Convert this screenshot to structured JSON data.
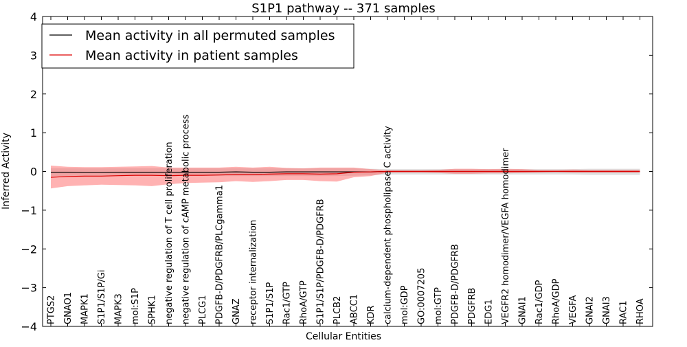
{
  "chart_data": {
    "type": "line",
    "title": "S1P1 pathway -- 371 samples",
    "xlabel": "Cellular Entities",
    "ylabel": "Inferred Activity",
    "ylim": [
      -4,
      4
    ],
    "yticks": [
      -4,
      -3,
      -2,
      -1,
      0,
      1,
      2,
      3,
      4
    ],
    "ytick_labels": [
      "−4",
      "−3",
      "−2",
      "−1",
      "0",
      "1",
      "2",
      "3",
      "4"
    ],
    "legend_position": "top-left",
    "categories": [
      "PTGS2",
      "GNAO1",
      "MAPK1",
      "S1P1/S1P/Gi",
      "MAPK3",
      "mol:S1P",
      "SPHK1",
      "negative regulation of T cell proliferation",
      "negative regulation of cAMP metabolic process",
      "PLCG1",
      "PDGFB-D/PDGFRB/PLCgamma1",
      "GNAZ",
      "receptor internalization",
      "S1P1/S1P",
      "Rac1/GTP",
      "RhoA/GTP",
      "S1P1/S1P/PDGFB-D/PDGFRB",
      "PLCB2",
      "ABCC1",
      "KDR",
      "calcium-dependent phospholipase C activity",
      "mol:GDP",
      "GO:0007205",
      "mol:GTP",
      "PDGFB-D/PDGFRB",
      "PDGFRB",
      "EDG1",
      "VEGFR2 homodimer/VEGFA homodimer",
      "GNAI1",
      "Rac1/GDP",
      "RhoA/GDP",
      "VEGFA",
      "GNAI2",
      "GNAI3",
      "RAC1",
      "RHOA"
    ],
    "series": [
      {
        "name": "Mean activity in all permuted samples",
        "color": "#000000",
        "band_color": "#bbbbbb",
        "values": [
          -0.02,
          -0.02,
          -0.03,
          -0.03,
          -0.02,
          -0.02,
          -0.02,
          -0.02,
          -0.02,
          -0.02,
          -0.02,
          -0.01,
          -0.02,
          -0.02,
          -0.01,
          -0.01,
          -0.01,
          -0.01,
          -0.01,
          -0.01,
          0.0,
          0.0,
          0.0,
          0.0,
          0.0,
          0.0,
          0.0,
          0.0,
          0.0,
          0.0,
          0.0,
          0.0,
          0.0,
          0.0,
          0.0,
          0.0
        ],
        "lower": [
          -0.12,
          -0.12,
          -0.12,
          -0.12,
          -0.12,
          -0.12,
          -0.12,
          -0.12,
          -0.12,
          -0.12,
          -0.12,
          -0.12,
          -0.12,
          -0.12,
          -0.12,
          -0.12,
          -0.12,
          -0.12,
          -0.11,
          -0.1,
          -0.08,
          -0.08,
          -0.08,
          -0.08,
          -0.08,
          -0.08,
          -0.08,
          -0.08,
          -0.08,
          -0.08,
          -0.08,
          -0.08,
          -0.09,
          -0.09,
          -0.09,
          -0.09
        ],
        "upper": [
          0.08,
          0.08,
          0.08,
          0.08,
          0.08,
          0.08,
          0.08,
          0.08,
          0.08,
          0.08,
          0.08,
          0.08,
          0.08,
          0.08,
          0.08,
          0.08,
          0.08,
          0.08,
          0.08,
          0.07,
          0.06,
          0.06,
          0.06,
          0.06,
          0.06,
          0.06,
          0.06,
          0.06,
          0.06,
          0.06,
          0.06,
          0.06,
          0.07,
          0.07,
          0.07,
          0.07
        ]
      },
      {
        "name": "Mean activity in patient samples",
        "color": "#dd0000",
        "band_color": "#ff6666",
        "values": [
          -0.15,
          -0.13,
          -0.12,
          -0.12,
          -0.11,
          -0.1,
          -0.1,
          -0.11,
          -0.1,
          -0.1,
          -0.09,
          -0.08,
          -0.08,
          -0.07,
          -0.06,
          -0.06,
          -0.07,
          -0.06,
          -0.02,
          -0.01,
          0.0,
          0.0,
          0.0,
          0.0,
          0.0,
          0.0,
          0.0,
          0.0,
          0.0,
          0.0,
          0.0,
          0.0,
          0.0,
          0.0,
          0.0,
          0.0
        ],
        "lower": [
          -0.44,
          -0.38,
          -0.36,
          -0.34,
          -0.35,
          -0.36,
          -0.38,
          -0.33,
          -0.3,
          -0.29,
          -0.28,
          -0.25,
          -0.27,
          -0.25,
          -0.22,
          -0.22,
          -0.25,
          -0.26,
          -0.15,
          -0.12,
          -0.03,
          -0.03,
          -0.03,
          -0.04,
          -0.06,
          -0.06,
          -0.05,
          -0.05,
          -0.04,
          -0.03,
          -0.02,
          -0.03,
          -0.03,
          -0.03,
          -0.03,
          -0.03
        ],
        "upper": [
          0.15,
          0.12,
          0.11,
          0.11,
          0.12,
          0.13,
          0.14,
          0.1,
          0.1,
          0.1,
          0.1,
          0.12,
          0.1,
          0.12,
          0.09,
          0.08,
          0.1,
          0.1,
          0.1,
          0.06,
          0.03,
          0.03,
          0.03,
          0.04,
          0.07,
          0.07,
          0.06,
          0.07,
          0.06,
          0.04,
          0.04,
          0.05,
          0.04,
          0.04,
          0.04,
          0.04
        ]
      }
    ]
  }
}
